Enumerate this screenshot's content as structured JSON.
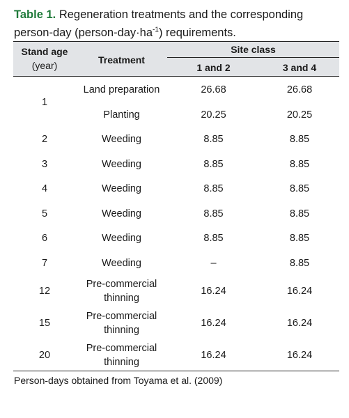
{
  "caption": {
    "label": "Table 1.",
    "text_line1": "Regeneration treatments and the corresponding",
    "text_line2_pre": "person-day (person-day·ha",
    "superscript": "-1",
    "text_line2_post": ") requirements."
  },
  "table": {
    "headers": {
      "stand_age": "Stand age",
      "stand_age_unit": "(year)",
      "treatment": "Treatment",
      "site_class": "Site class",
      "class_a": "1 and 2",
      "class_b": "3 and 4"
    },
    "rows": [
      {
        "age": "1",
        "t1": "Land preparation",
        "a1": "26.68",
        "b1": "26.68",
        "t2": "Planting",
        "a2": "20.25",
        "b2": "20.25"
      },
      {
        "age": "2",
        "treatment": "Weeding",
        "a": "8.85",
        "b": "8.85"
      },
      {
        "age": "3",
        "treatment": "Weeding",
        "a": "8.85",
        "b": "8.85"
      },
      {
        "age": "4",
        "treatment": "Weeding",
        "a": "8.85",
        "b": "8.85"
      },
      {
        "age": "5",
        "treatment": "Weeding",
        "a": "8.85",
        "b": "8.85"
      },
      {
        "age": "6",
        "treatment": "Weeding",
        "a": "8.85",
        "b": "8.85"
      },
      {
        "age": "7",
        "treatment": "Weeding",
        "a": "–",
        "b": "8.85"
      },
      {
        "age": "12",
        "treatment_l1": "Pre-commercial",
        "treatment_l2": "thinning",
        "a": "16.24",
        "b": "16.24"
      },
      {
        "age": "15",
        "treatment_l1": "Pre-commercial",
        "treatment_l2": "thinning",
        "a": "16.24",
        "b": "16.24"
      },
      {
        "age": "20",
        "treatment_l1": "Pre-commercial",
        "treatment_l2": "thinning",
        "a": "16.24",
        "b": "16.24"
      }
    ]
  },
  "footnote": "Person-days obtained from Toyama et al. (2009)"
}
